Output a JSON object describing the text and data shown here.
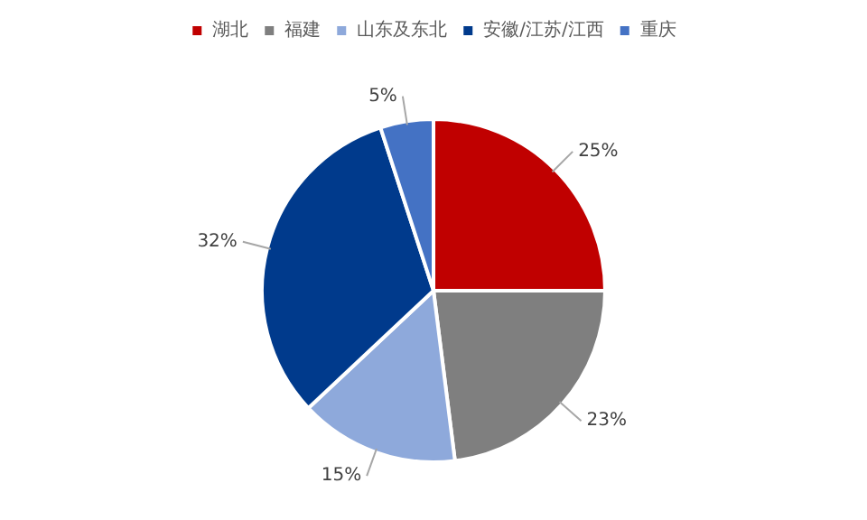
{
  "chart_data": {
    "type": "pie",
    "categories": [
      "湖北",
      "福建",
      "山东及东北",
      "安徽/江苏/江西",
      "重庆"
    ],
    "values": [
      25,
      23,
      15,
      32,
      5
    ],
    "colors": [
      "#c00000",
      "#7f7f7f",
      "#8ea9db",
      "#003a8c",
      "#4472c4"
    ],
    "value_labels": [
      "25%",
      "23%",
      "15%",
      "32%",
      "5%"
    ],
    "legend": "top"
  }
}
